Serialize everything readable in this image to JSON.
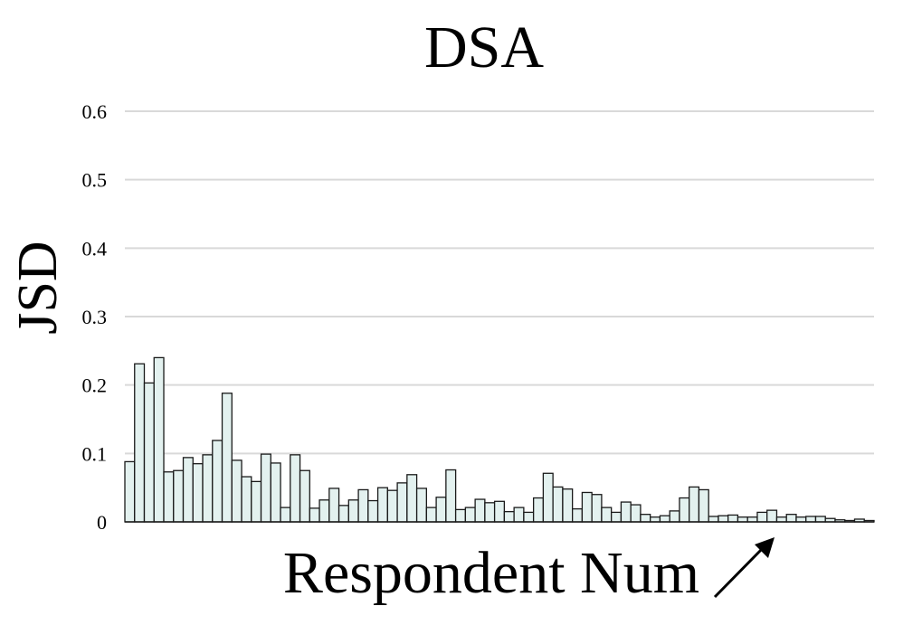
{
  "chart_data": {
    "type": "bar",
    "title": "DSA",
    "ylabel": "JSD",
    "xlabel": "Respondent Num",
    "xlabel_arrow": "increasing",
    "ylim": [
      0,
      0.6
    ],
    "yticks": [
      "0",
      "0.1",
      "0.2",
      "0.3",
      "0.4",
      "0.5",
      "0.6"
    ],
    "grid": true,
    "bar_color": "#e3f1ef",
    "bar_edge_color": "#1a1a1a",
    "grid_color": "#d9d9d9",
    "values": [
      0.088,
      0.231,
      0.203,
      0.24,
      0.073,
      0.075,
      0.094,
      0.085,
      0.098,
      0.119,
      0.188,
      0.09,
      0.066,
      0.059,
      0.099,
      0.086,
      0.021,
      0.098,
      0.075,
      0.02,
      0.032,
      0.049,
      0.024,
      0.032,
      0.047,
      0.031,
      0.05,
      0.046,
      0.057,
      0.069,
      0.049,
      0.021,
      0.036,
      0.076,
      0.018,
      0.021,
      0.033,
      0.028,
      0.03,
      0.015,
      0.021,
      0.014,
      0.035,
      0.071,
      0.051,
      0.048,
      0.019,
      0.043,
      0.04,
      0.021,
      0.014,
      0.029,
      0.025,
      0.011,
      0.007,
      0.009,
      0.016,
      0.035,
      0.051,
      0.047,
      0.008,
      0.009,
      0.01,
      0.007,
      0.007,
      0.014,
      0.017,
      0.007,
      0.011,
      0.007,
      0.008,
      0.008,
      0.005,
      0.003,
      0.002,
      0.004,
      0.002
    ]
  }
}
